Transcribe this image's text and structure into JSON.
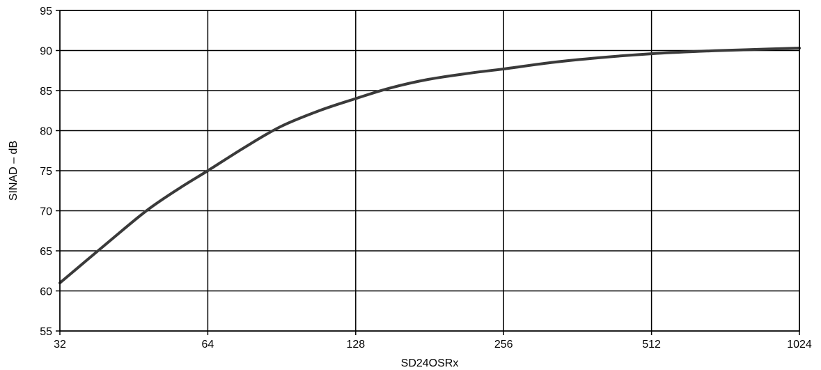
{
  "chart_data": {
    "type": "line",
    "title": "",
    "xlabel": "SD24OSRx",
    "ylabel": "SINAD – dB",
    "x_scale": "log2",
    "xlim": [
      32,
      1024
    ],
    "ylim": [
      55,
      95
    ],
    "x_ticks": [
      32,
      64,
      128,
      256,
      512,
      1024
    ],
    "x_tick_labels": [
      "32",
      "64",
      "128",
      "256",
      "512",
      "1024"
    ],
    "y_ticks": [
      55,
      60,
      65,
      70,
      75,
      80,
      85,
      90,
      95
    ],
    "y_tick_labels": [
      "55",
      "60",
      "65",
      "70",
      "75",
      "80",
      "85",
      "90",
      "95"
    ],
    "grid": true,
    "legend": "none",
    "series": [
      {
        "color": "#3a3a3a",
        "x": [
          32,
          40,
          48,
          56,
          64,
          76,
          90,
          108,
          128,
          150,
          180,
          220,
          256,
          320,
          400,
          512,
          640,
          800,
          1024
        ],
        "y": [
          61,
          66,
          70,
          72.8,
          75,
          77.9,
          80.5,
          82.5,
          84,
          85.3,
          86.4,
          87.2,
          87.7,
          88.5,
          89.1,
          89.6,
          89.9,
          90.1,
          90.3
        ]
      }
    ]
  }
}
